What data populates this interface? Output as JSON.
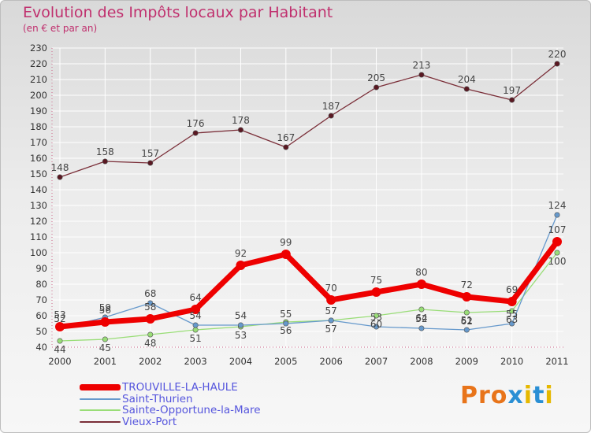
{
  "title": "Evolution des Impôts locaux par Habitant",
  "subtitle": "(en € et par an)",
  "logo_text": "Proxiti",
  "chart_data": {
    "type": "line",
    "title": "Evolution des Impôts locaux par Habitant",
    "subtitle": "(en € et par an)",
    "xlabel": "",
    "ylabel": "",
    "ylim": [
      40,
      230
    ],
    "yticks": [
      40,
      50,
      60,
      70,
      80,
      90,
      100,
      110,
      120,
      130,
      140,
      150,
      160,
      170,
      180,
      190,
      200,
      210,
      220,
      230
    ],
    "x": [
      "2000",
      "2001",
      "2002",
      "2003",
      "2004",
      "2005",
      "2006",
      "2007",
      "2008",
      "2009",
      "2010",
      "2011"
    ],
    "grid": true,
    "legend_position": "bottom-left",
    "series": [
      {
        "name": "Vieux-Port",
        "color": "#7a2e38",
        "values": [
          148,
          158,
          157,
          176,
          178,
          167,
          187,
          205,
          213,
          204,
          197,
          220
        ]
      },
      {
        "name": "Sainte-Opportune-la-Mare",
        "color": "#99dd77",
        "values": [
          44,
          45,
          48,
          51,
          53,
          56,
          57,
          60,
          64,
          62,
          63,
          100
        ]
      },
      {
        "name": "Saint-Thurien",
        "color": "#6699cc",
        "values": [
          52,
          59,
          68,
          54,
          54,
          55,
          57,
          53,
          52,
          51,
          55,
          124
        ]
      },
      {
        "name": "TROUVILLE-LA-HAULE",
        "color": "#ee0000",
        "values": [
          53,
          56,
          58,
          64,
          92,
          99,
          70,
          75,
          80,
          72,
          69,
          107
        ]
      }
    ],
    "legend_order": [
      "TROUVILLE-LA-HAULE",
      "Saint-Thurien",
      "Sainte-Opportune-la-Mare",
      "Vieux-Port"
    ]
  },
  "colors": {
    "title": "#c0306e",
    "grid": "#ffffff",
    "axis_text": "#333333",
    "label_text": "#444444",
    "legend_text": "#5555dd",
    "logo": [
      "#e8741a",
      "#e8741a",
      "#e8741a",
      "#2a8fd4",
      "#e6b800",
      "#2a8fd4",
      "#e6b800"
    ]
  }
}
